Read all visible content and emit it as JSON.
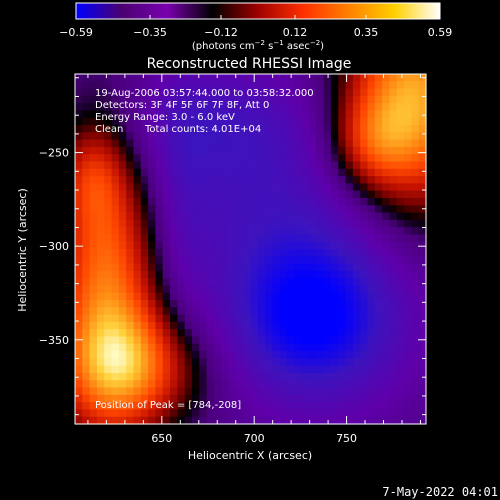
{
  "chart_data": {
    "type": "heatmap",
    "title": "Reconstructed RHESSI Image",
    "xlabel": "Heliocentric X (arcsec)",
    "ylabel": "Heliocentric Y (arcsec)",
    "xlim": [
      603,
      793
    ],
    "ylim": [
      -395,
      -208
    ],
    "x_ticks": [
      650,
      700,
      750
    ],
    "y_ticks": [
      -250,
      -300,
      -350
    ],
    "x_tick_labels": [
      "650",
      "700",
      "750"
    ],
    "y_tick_labels": [
      "−250",
      "−300",
      "−350"
    ],
    "colorbar": {
      "range": [
        -0.59,
        0.59
      ],
      "ticks": [
        -0.59,
        -0.35,
        -0.12,
        0.12,
        0.35,
        0.59
      ],
      "tick_labels": [
        "−0.59",
        "−0.35",
        "−0.12",
        "0.12",
        "0.35",
        "0.59"
      ],
      "unit_prefix": "(photons cm",
      "unit_exp1": "−2",
      "unit_mid": " s",
      "unit_exp2": "−1",
      "unit_mid2": " asec",
      "unit_exp3": "−2",
      "unit_suffix": ")",
      "colors": [
        "#0000ff",
        "#4a0070",
        "#7a00b0",
        "#000000",
        "#a00000",
        "#ff3000",
        "#ff8000",
        "#ffd000",
        "#ffffff"
      ]
    },
    "sources": [
      {
        "x": 786,
        "y": -222,
        "sx": 26,
        "sy": 42,
        "amp": 0.59
      },
      {
        "x": 762,
        "y": -245,
        "sx": 16,
        "sy": 18,
        "amp": 0.22
      },
      {
        "x": 620,
        "y": -315,
        "sx": 20,
        "sy": 58,
        "amp": 0.5
      },
      {
        "x": 635,
        "y": -365,
        "sx": 28,
        "sy": 22,
        "amp": 0.38
      },
      {
        "x": 612,
        "y": -262,
        "sx": 12,
        "sy": 18,
        "amp": 0.16
      },
      {
        "x": 732,
        "y": -338,
        "sx": 34,
        "sy": 32,
        "amp": -0.5
      },
      {
        "x": 700,
        "y": -272,
        "sx": 48,
        "sy": 34,
        "amp": -0.2
      },
      {
        "x": 675,
        "y": -232,
        "sx": 40,
        "sy": 22,
        "amp": -0.18
      },
      {
        "x": 662,
        "y": -285,
        "sx": 10,
        "sy": 50,
        "amp": -0.08
      }
    ],
    "peak": [
      784,
      -208
    ],
    "info": {
      "time": "19-Aug-2006 03:57:44.000 to 03:58:32.000",
      "detectors": "Detectors: 3F 4F 5F 6F 7F 8F, Att 0",
      "energy": "Energy Range: 3.0 - 6.0 keV",
      "clean": "Clean",
      "counts": "Total counts: 4.01E+04",
      "peak_label": "Position of Peak = [784,-208]"
    }
  },
  "footer": {
    "date": "7-May-2022 04:01"
  }
}
